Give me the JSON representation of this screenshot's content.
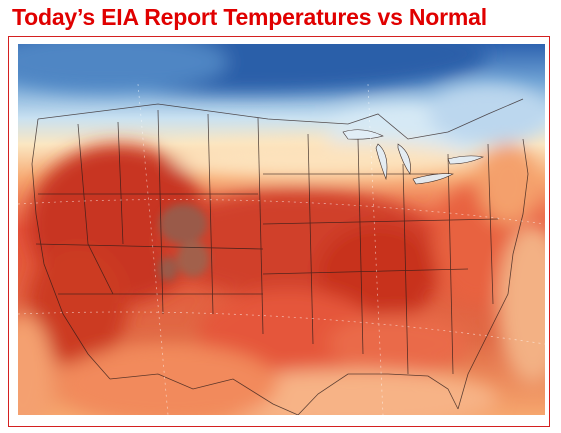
{
  "header": {
    "title": "Today’s EIA Report Temperatures vs Normal"
  },
  "map": {
    "subject": "temperature anomaly vs normal",
    "region": "contiguous United States",
    "colors": {
      "cold_deep": "#2e63b0",
      "cold": "#6fa2d4",
      "cool": "#c9e1f1",
      "near_normal": "#fbe7c2",
      "warm": "#f7ab74",
      "hot": "#e6533a",
      "hot_deep": "#c2301f",
      "extreme": "#9a4c3c",
      "frame": "#d42020",
      "title": "#e00000"
    }
  }
}
